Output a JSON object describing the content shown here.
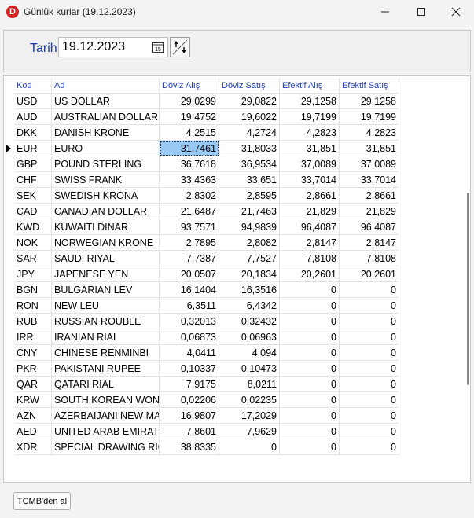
{
  "window": {
    "title": "Günlük kurlar (19.12.2023)",
    "app_icon_letter": "D"
  },
  "filter": {
    "date_label": "Tarih",
    "date_value": "19.12.2023",
    "calendar_glyph": "15"
  },
  "table": {
    "headers": {
      "kod": "Kod",
      "ad": "Ad",
      "doviz_alis": "Döviz Alış",
      "doviz_satis": "Döviz Satış",
      "efektif_alis": "Efektif Alış",
      "efektif_satis": "Efektif Satış"
    },
    "selected_row": 3,
    "rows": [
      [
        "USD",
        "US DOLLAR",
        "29,0299",
        "29,0822",
        "29,1258",
        "29,1258"
      ],
      [
        "AUD",
        "AUSTRALIAN DOLLAR",
        "19,4752",
        "19,6022",
        "19,7199",
        "19,7199"
      ],
      [
        "DKK",
        "DANISH KRONE",
        "4,2515",
        "4,2724",
        "4,2823",
        "4,2823"
      ],
      [
        "EUR",
        "EURO",
        "31,7461",
        "31,8033",
        "31,851",
        "31,851"
      ],
      [
        "GBP",
        "POUND STERLING",
        "36,7618",
        "36,9534",
        "37,0089",
        "37,0089"
      ],
      [
        "CHF",
        "SWISS FRANK",
        "33,4363",
        "33,651",
        "33,7014",
        "33,7014"
      ],
      [
        "SEK",
        "SWEDISH KRONA",
        "2,8302",
        "2,8595",
        "2,8661",
        "2,8661"
      ],
      [
        "CAD",
        "CANADIAN DOLLAR",
        "21,6487",
        "21,7463",
        "21,829",
        "21,829"
      ],
      [
        "KWD",
        "KUWAITI DINAR",
        "93,7571",
        "94,9839",
        "96,4087",
        "96,4087"
      ],
      [
        "NOK",
        "NORWEGIAN KRONE",
        "2,7895",
        "2,8082",
        "2,8147",
        "2,8147"
      ],
      [
        "SAR",
        "SAUDI RIYAL",
        "7,7387",
        "7,7527",
        "7,8108",
        "7,8108"
      ],
      [
        "JPY",
        "JAPENESE YEN",
        "20,0507",
        "20,1834",
        "20,2601",
        "20,2601"
      ],
      [
        "BGN",
        "BULGARIAN LEV",
        "16,1404",
        "16,3516",
        "0",
        "0"
      ],
      [
        "RON",
        "NEW LEU",
        "6,3511",
        "6,4342",
        "0",
        "0"
      ],
      [
        "RUB",
        "RUSSIAN ROUBLE",
        "0,32013",
        "0,32432",
        "0",
        "0"
      ],
      [
        "IRR",
        "IRANIAN RIAL",
        "0,06873",
        "0,06963",
        "0",
        "0"
      ],
      [
        "CNY",
        "CHINESE RENMINBI",
        "4,0411",
        "4,094",
        "0",
        "0"
      ],
      [
        "PKR",
        "PAKISTANI RUPEE",
        "0,10337",
        "0,10473",
        "0",
        "0"
      ],
      [
        "QAR",
        "QATARI RIAL",
        "7,9175",
        "8,0211",
        "0",
        "0"
      ],
      [
        "KRW",
        "SOUTH KOREAN WON",
        "0,02206",
        "0,02235",
        "0",
        "0"
      ],
      [
        "AZN",
        "AZERBAIJANI NEW MANAT",
        "16,9807",
        "17,2029",
        "0",
        "0"
      ],
      [
        "AED",
        "UNITED ARAB EMIRATES DIRHAM",
        "7,8601",
        "7,9629",
        "0",
        "0"
      ],
      [
        "XDR",
        "SPECIAL DRAWING RIGHT",
        "38,8335",
        "0",
        "0",
        "0"
      ]
    ]
  },
  "footer": {
    "fetch_button_label": "TCMB'den al"
  },
  "colors": {
    "header_text": "#1e3fbd",
    "selection": "#99c9f5",
    "app_icon": "#d32020"
  }
}
